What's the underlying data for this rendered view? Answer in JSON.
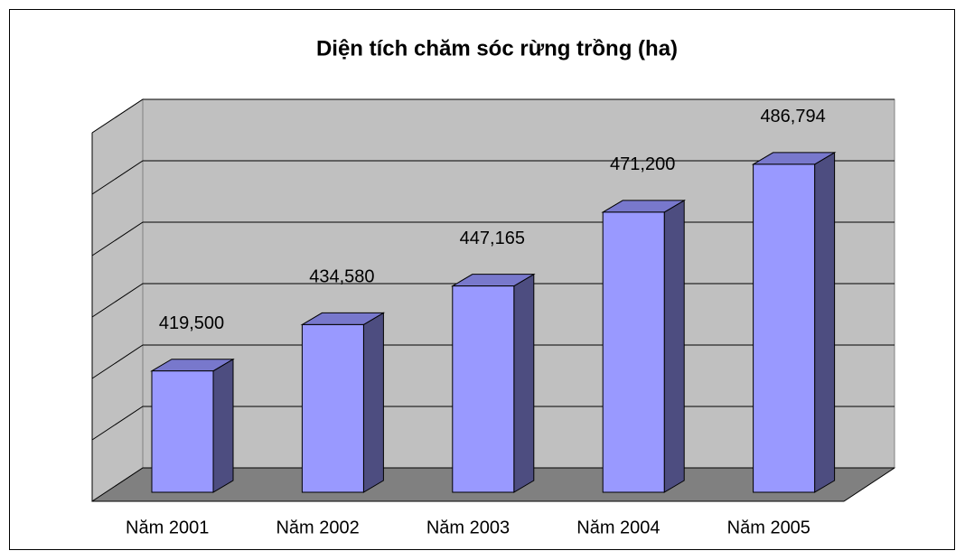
{
  "chart_data": {
    "type": "bar3d",
    "title": "Diện tích chăm sóc rừng trồng (ha)",
    "categories": [
      "Năm 2001",
      "Năm 2002",
      "Năm 2003",
      "Năm 2004",
      "Năm 2005"
    ],
    "values": [
      419500,
      434580,
      447165,
      471200,
      486794
    ],
    "value_labels": [
      "419,500",
      "434,580",
      "447,165",
      "471,200",
      "486,794"
    ],
    "color": "#9999ff",
    "ylim": [
      380000,
      500000
    ],
    "yticks": [
      380000,
      400000,
      420000,
      440000,
      460000,
      480000,
      500000
    ],
    "grid": true
  }
}
